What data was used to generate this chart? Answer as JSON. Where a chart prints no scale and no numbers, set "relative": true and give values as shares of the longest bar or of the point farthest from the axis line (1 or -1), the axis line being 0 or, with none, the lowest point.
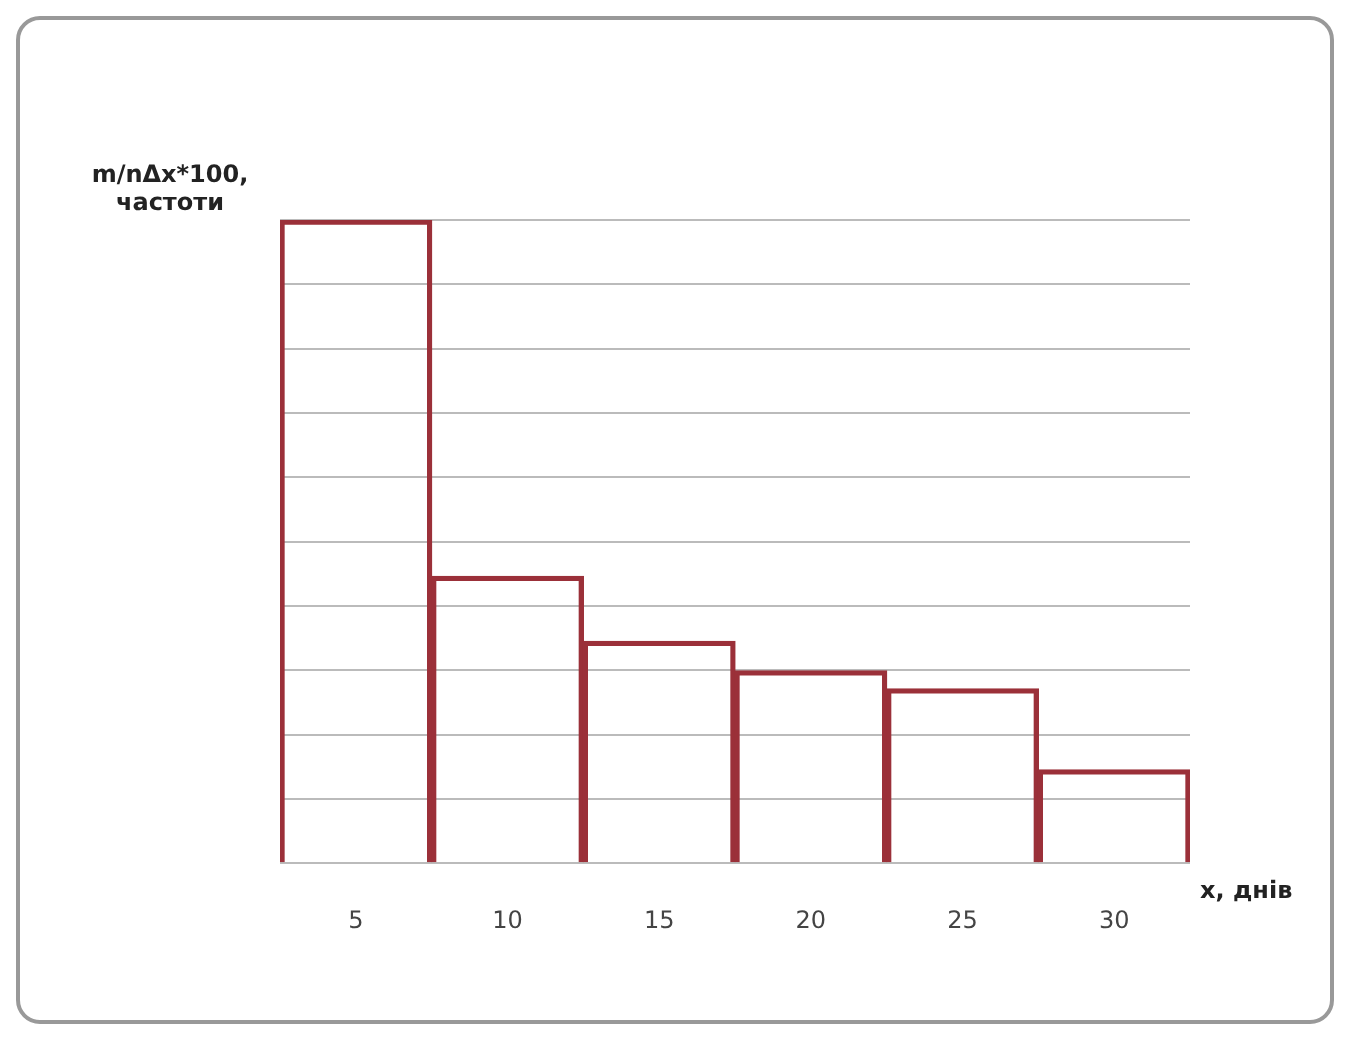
{
  "chart_data": {
    "type": "bar",
    "relative": true,
    "ylabel": "m/nΔx*100, частоти",
    "xlabel": "x, днів",
    "categories": [
      "5",
      "10",
      "15",
      "20",
      "25",
      "30"
    ],
    "values": [
      1,
      0.446,
      0.345,
      0.299,
      0.271,
      0.145
    ],
    "color": "#9b3039",
    "grid": "y",
    "legend": false
  }
}
